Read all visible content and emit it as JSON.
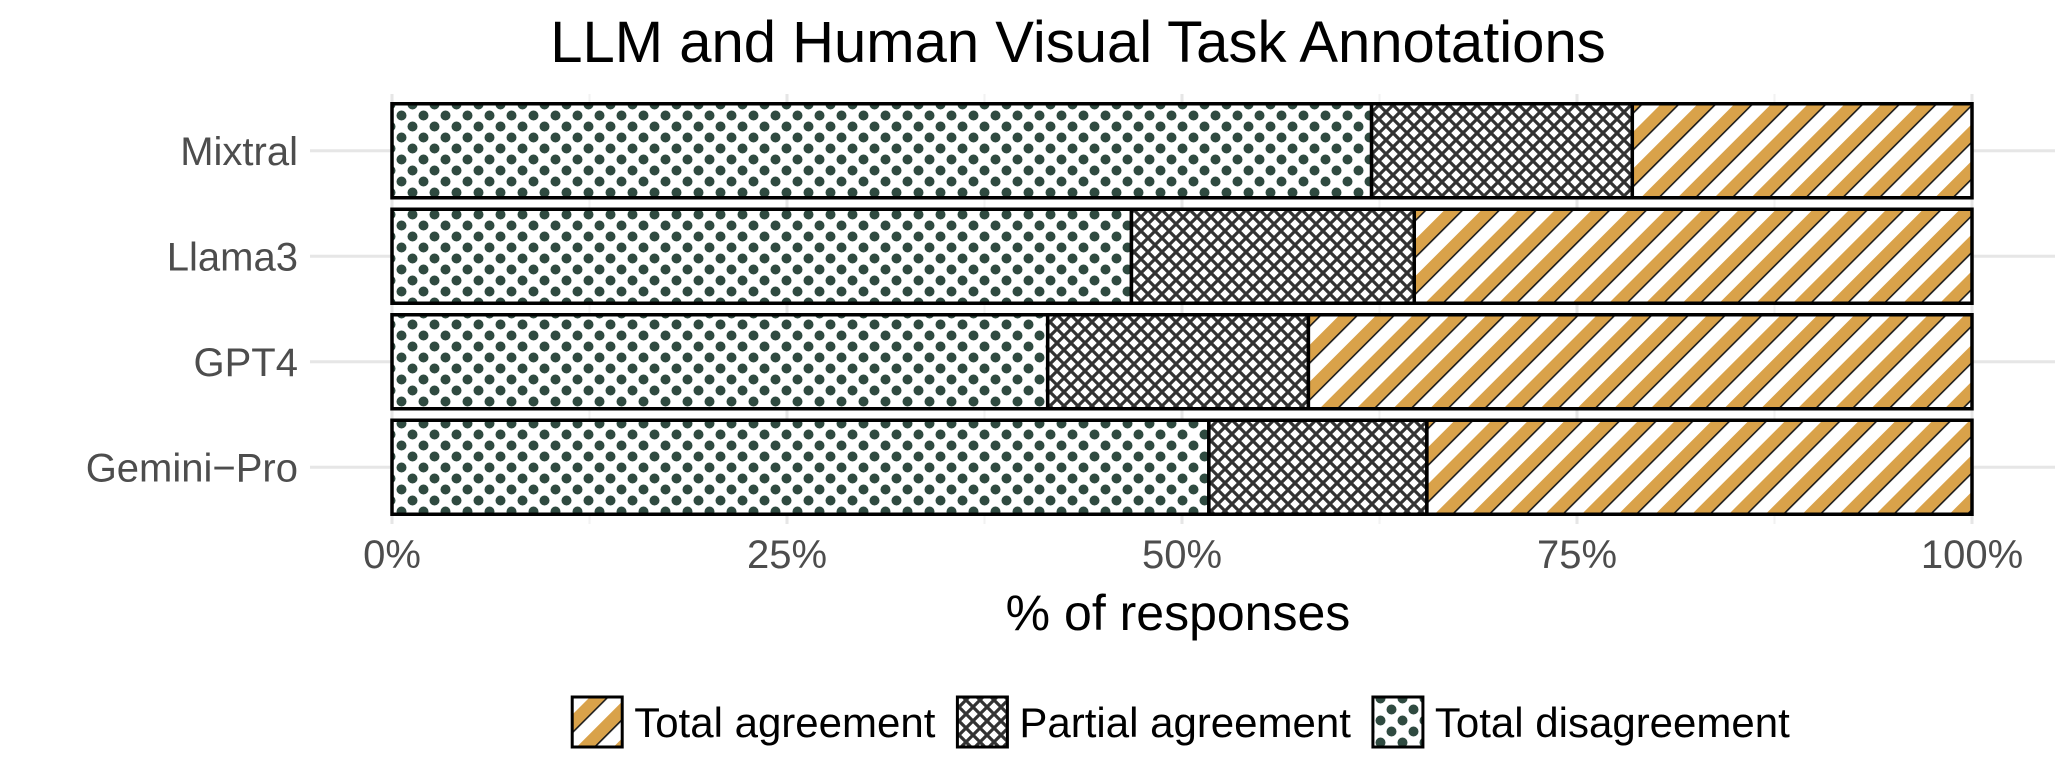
{
  "chart_data": {
    "type": "bar",
    "orientation": "horizontal",
    "stacked": true,
    "title": "LLM and Human Visual Task Annotations",
    "xlabel": "% of responses",
    "ylabel": "",
    "xlim": [
      0,
      100
    ],
    "x_ticks": [
      "0%",
      "25%",
      "50%",
      "75%",
      "100%"
    ],
    "x_tick_values": [
      0,
      25,
      50,
      75,
      100
    ],
    "categories": [
      "Mixtral",
      "Llama3",
      "GPT4",
      "Gemini−Pro"
    ],
    "series": [
      {
        "name": "Total disagreement",
        "pattern": "dots",
        "color": "#2f4a40",
        "values": [
          62,
          46.8,
          41.5,
          51.7
        ]
      },
      {
        "name": "Partial agreement",
        "pattern": "crosshatch",
        "color": "#333333",
        "values": [
          16.5,
          17.9,
          16.5,
          13.8
        ]
      },
      {
        "name": "Total agreement",
        "pattern": "stripes",
        "color": "#d9a24a",
        "values": [
          21.5,
          35.3,
          42,
          34.5
        ]
      }
    ],
    "legend": {
      "position": "bottom",
      "order": [
        "Total agreement",
        "Partial agreement",
        "Total disagreement"
      ]
    },
    "grid": true
  }
}
